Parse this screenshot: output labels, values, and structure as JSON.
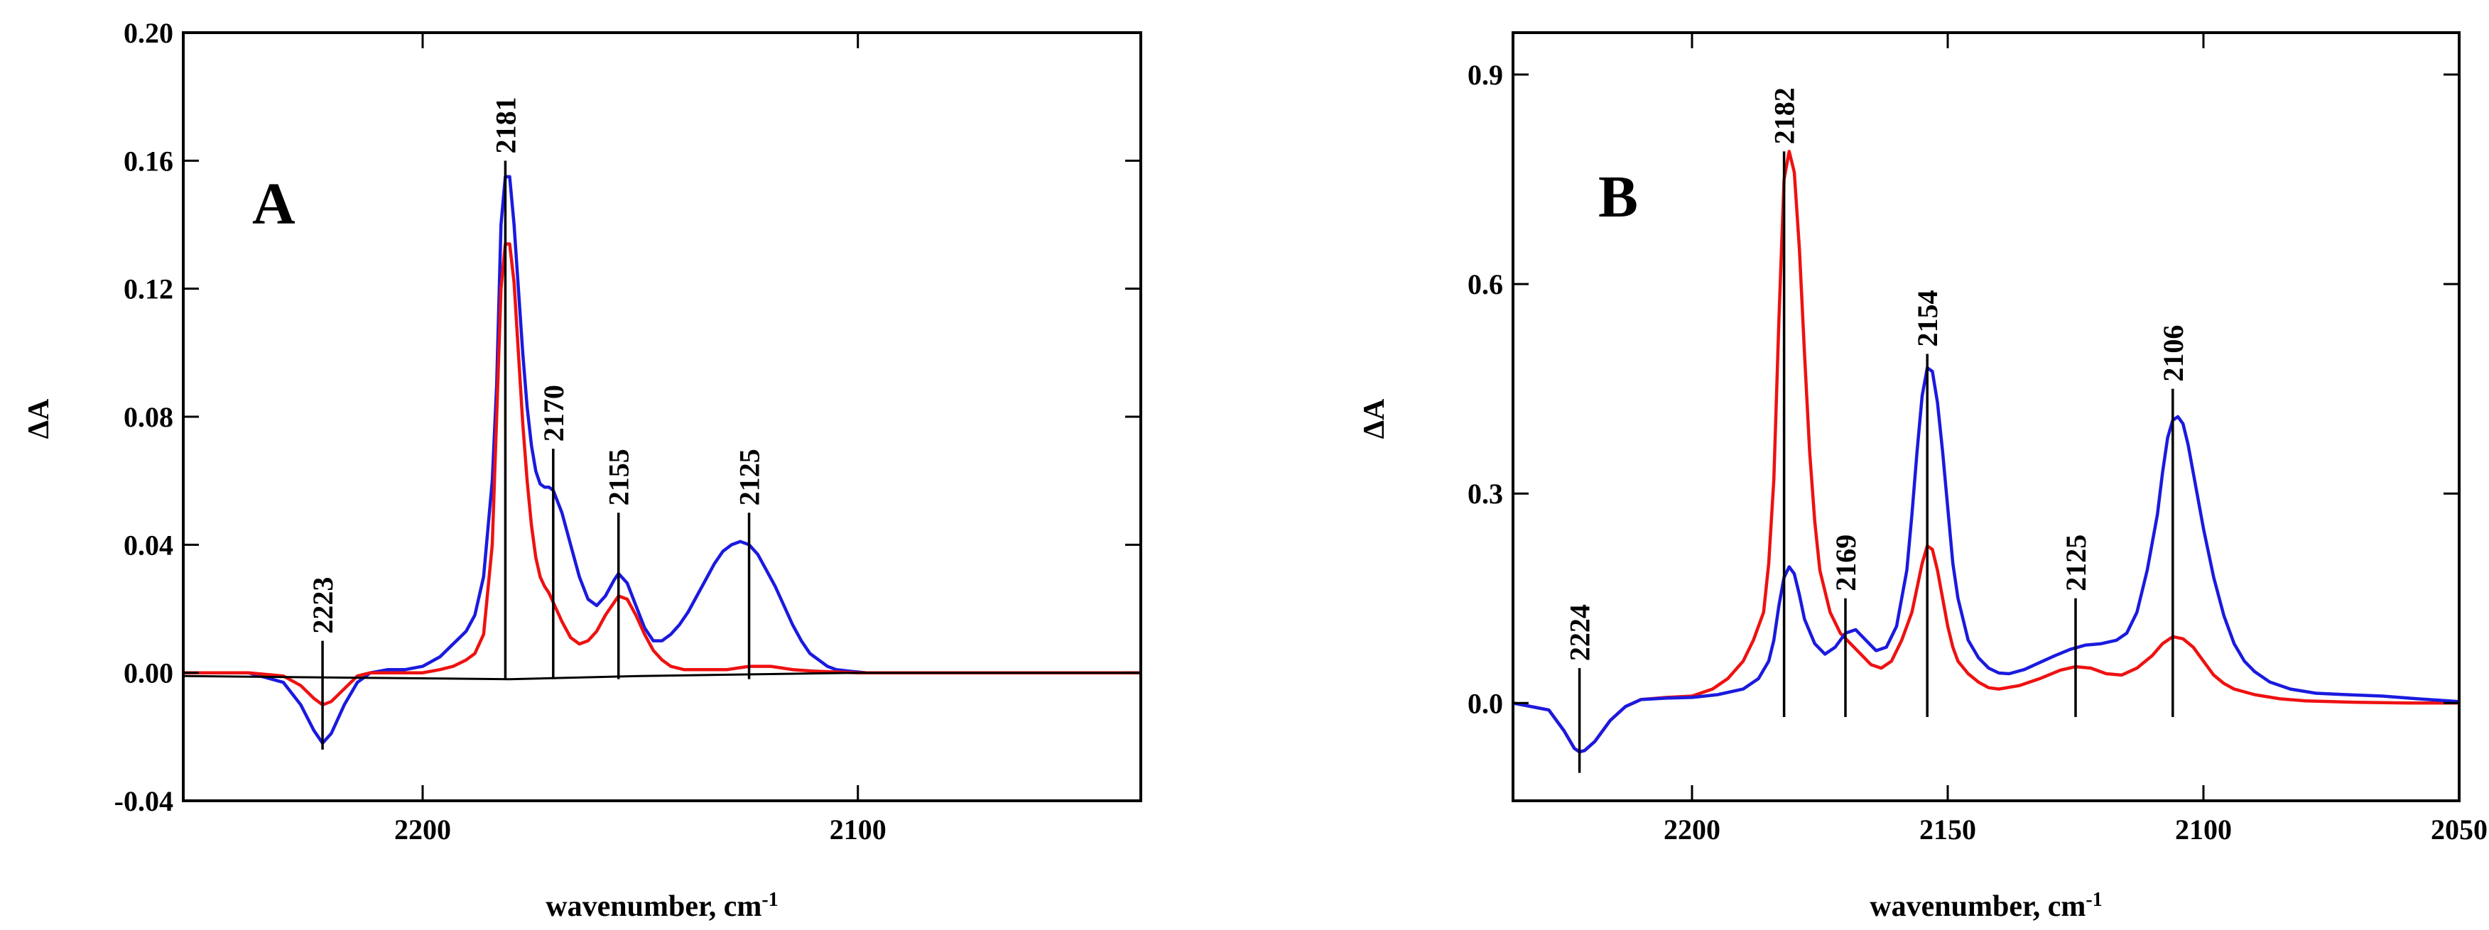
{
  "chart_data": [
    {
      "type": "line",
      "panel": "A",
      "xlabel": "wavenumber, cm",
      "xlabel_sup": "-1",
      "ylabel": "ΔA",
      "xlim": [
        2255,
        2035
      ],
      "ylim": [
        -0.04,
        0.2
      ],
      "x_ticks": [
        2200,
        2100
      ],
      "x_tick_labels": [
        "2200",
        "2100"
      ],
      "y_ticks": [
        -0.04,
        0,
        0.04,
        0.08,
        0.12,
        0.16,
        0.2
      ],
      "y_tick_labels": [
        "-0.04",
        "0.00",
        "0.04",
        "0.08",
        "0.12",
        "0.16",
        "0.20"
      ],
      "peak_labels": [
        {
          "x": 2223,
          "label": "2223",
          "y_top": 0.01,
          "y_bottom": -0.024
        },
        {
          "x": 2181,
          "label": "2181",
          "y_top": 0.16,
          "y_bottom": -0.002
        },
        {
          "x": 2170,
          "label": "2170",
          "y_top": 0.07,
          "y_bottom": -0.002
        },
        {
          "x": 2155,
          "label": "2155",
          "y_top": 0.05,
          "y_bottom": -0.002
        },
        {
          "x": 2125,
          "label": "2125",
          "y_top": 0.05,
          "y_bottom": -0.002
        }
      ],
      "series": [
        {
          "name": "blue",
          "color": "#1a1adf",
          "x": [
            2255,
            2240,
            2232,
            2228,
            2225,
            2223,
            2221,
            2218,
            2215,
            2212,
            2208,
            2204,
            2200,
            2196,
            2193,
            2190,
            2188,
            2186,
            2184,
            2183,
            2182,
            2181,
            2180,
            2179,
            2178,
            2177,
            2176,
            2175,
            2174,
            2173,
            2172,
            2171,
            2170,
            2168,
            2166,
            2164,
            2162,
            2160,
            2158,
            2156,
            2155,
            2153,
            2151,
            2149,
            2147,
            2145,
            2143,
            2141,
            2139,
            2137,
            2135,
            2133,
            2131,
            2129,
            2127,
            2125,
            2123,
            2121,
            2119,
            2117,
            2115,
            2113,
            2111,
            2109,
            2107,
            2105,
            2102,
            2098,
            2090,
            2080,
            2060,
            2035
          ],
          "y": [
            0,
            0,
            -0.003,
            -0.01,
            -0.018,
            -0.022,
            -0.019,
            -0.01,
            -0.003,
            0,
            0.001,
            0.001,
            0.002,
            0.005,
            0.009,
            0.013,
            0.018,
            0.03,
            0.06,
            0.09,
            0.14,
            0.155,
            0.155,
            0.14,
            0.12,
            0.1,
            0.083,
            0.071,
            0.063,
            0.059,
            0.058,
            0.058,
            0.057,
            0.05,
            0.04,
            0.03,
            0.023,
            0.021,
            0.024,
            0.029,
            0.031,
            0.028,
            0.021,
            0.014,
            0.01,
            0.01,
            0.012,
            0.015,
            0.019,
            0.024,
            0.029,
            0.034,
            0.038,
            0.04,
            0.041,
            0.04,
            0.037,
            0.032,
            0.027,
            0.021,
            0.015,
            0.01,
            0.006,
            0.004,
            0.002,
            0.001,
            0.0005,
            0,
            0,
            0,
            0,
            0
          ]
        },
        {
          "name": "red",
          "color": "#ee1111",
          "x": [
            2255,
            2240,
            2232,
            2228,
            2225,
            2223,
            2221,
            2218,
            2215,
            2212,
            2208,
            2204,
            2200,
            2196,
            2193,
            2190,
            2188,
            2186,
            2184,
            2183,
            2182,
            2181,
            2180,
            2179,
            2178,
            2177,
            2176,
            2175,
            2174,
            2173,
            2172,
            2171,
            2170,
            2168,
            2166,
            2164,
            2162,
            2160,
            2158,
            2156,
            2155,
            2153,
            2151,
            2149,
            2147,
            2145,
            2143,
            2140,
            2135,
            2130,
            2125,
            2120,
            2115,
            2110,
            2100,
            2080,
            2035
          ],
          "y": [
            0,
            0,
            -0.001,
            -0.004,
            -0.008,
            -0.01,
            -0.009,
            -0.005,
            -0.001,
            0,
            0,
            0,
            0,
            0.001,
            0.002,
            0.004,
            0.006,
            0.012,
            0.04,
            0.08,
            0.12,
            0.134,
            0.134,
            0.122,
            0.1,
            0.078,
            0.06,
            0.046,
            0.036,
            0.03,
            0.027,
            0.025,
            0.022,
            0.016,
            0.011,
            0.009,
            0.01,
            0.013,
            0.018,
            0.022,
            0.024,
            0.023,
            0.018,
            0.012,
            0.007,
            0.004,
            0.002,
            0.001,
            0.001,
            0.001,
            0.002,
            0.002,
            0.001,
            0.0005,
            0,
            0,
            0
          ]
        },
        {
          "name": "black",
          "color": "#000000",
          "x": [
            2255,
            2220,
            2180,
            2150,
            2100,
            2035
          ],
          "y": [
            -0.001,
            -0.0015,
            -0.002,
            -0.001,
            0,
            0
          ]
        }
      ]
    },
    {
      "type": "line",
      "panel": "B",
      "xlabel": "wavenumber, cm",
      "xlabel_sup": "-1",
      "ylabel": "ΔA",
      "xlim": [
        2235,
        2050
      ],
      "ylim": [
        -0.14,
        0.96
      ],
      "x_ticks": [
        2200,
        2150,
        2100,
        2050
      ],
      "x_tick_labels": [
        "2200",
        "2150",
        "2100",
        "2050"
      ],
      "y_ticks": [
        0,
        0.3,
        0.6,
        0.9
      ],
      "y_tick_labels": [
        "0.0",
        "0.3",
        "0.6",
        "0.9"
      ],
      "peak_labels": [
        {
          "x": 2222,
          "label": "2224",
          "y_top": 0.05,
          "y_bottom": -0.1
        },
        {
          "x": 2182,
          "label": "2182",
          "y_top": 0.79,
          "y_bottom": -0.02
        },
        {
          "x": 2170,
          "label": "2169",
          "y_top": 0.15,
          "y_bottom": -0.02
        },
        {
          "x": 2154,
          "label": "2154",
          "y_top": 0.5,
          "y_bottom": -0.02
        },
        {
          "x": 2125,
          "label": "2125",
          "y_top": 0.15,
          "y_bottom": -0.02
        },
        {
          "x": 2106,
          "label": "2106",
          "y_top": 0.45,
          "y_bottom": -0.02
        }
      ],
      "series": [
        {
          "name": "red",
          "color": "#ee1111",
          "x": [
            2235,
            2228,
            2225,
            2223,
            2222,
            2221,
            2219,
            2216,
            2213,
            2210,
            2205,
            2200,
            2196,
            2193,
            2190,
            2188,
            2186,
            2185,
            2184,
            2183,
            2182,
            2181,
            2180,
            2179,
            2178,
            2177,
            2176,
            2175,
            2173,
            2171,
            2169,
            2167,
            2165,
            2163,
            2161,
            2159,
            2157,
            2156,
            2155,
            2154,
            2153,
            2152,
            2151,
            2150,
            2149,
            2148,
            2146,
            2144,
            2142,
            2140,
            2136,
            2132,
            2128,
            2125,
            2122,
            2119,
            2116,
            2113,
            2110,
            2108,
            2106,
            2104,
            2102,
            2100,
            2098,
            2096,
            2094,
            2090,
            2085,
            2080,
            2070,
            2060,
            2050
          ],
          "y": [
            0,
            -0.01,
            -0.04,
            -0.065,
            -0.07,
            -0.068,
            -0.055,
            -0.025,
            -0.005,
            0.005,
            0.008,
            0.01,
            0.02,
            0.035,
            0.06,
            0.09,
            0.13,
            0.2,
            0.32,
            0.55,
            0.75,
            0.79,
            0.76,
            0.65,
            0.5,
            0.36,
            0.26,
            0.19,
            0.13,
            0.1,
            0.085,
            0.07,
            0.055,
            0.05,
            0.06,
            0.09,
            0.13,
            0.165,
            0.2,
            0.225,
            0.22,
            0.19,
            0.15,
            0.11,
            0.08,
            0.06,
            0.042,
            0.03,
            0.022,
            0.02,
            0.025,
            0.035,
            0.047,
            0.052,
            0.05,
            0.042,
            0.04,
            0.05,
            0.068,
            0.085,
            0.095,
            0.092,
            0.08,
            0.06,
            0.04,
            0.028,
            0.02,
            0.012,
            0.006,
            0.003,
            0.001,
            0,
            0
          ]
        },
        {
          "name": "blue",
          "color": "#1a1adf",
          "x": [
            2235,
            2228,
            2225,
            2223,
            2222,
            2221,
            2219,
            2216,
            2213,
            2210,
            2205,
            2200,
            2195,
            2190,
            2187,
            2185,
            2184,
            2183,
            2182,
            2181,
            2180,
            2179,
            2178,
            2176,
            2174,
            2172,
            2170,
            2168,
            2166,
            2164,
            2162,
            2160,
            2158,
            2157,
            2156,
            2155,
            2154,
            2153,
            2152,
            2151,
            2150,
            2149,
            2148,
            2146,
            2144,
            2142,
            2140,
            2138,
            2135,
            2132,
            2129,
            2126,
            2123,
            2120,
            2117,
            2115,
            2113,
            2111,
            2109,
            2108,
            2107,
            2106,
            2105,
            2104,
            2103,
            2102,
            2100,
            2098,
            2096,
            2094,
            2092,
            2090,
            2087,
            2083,
            2078,
            2072,
            2065,
            2058,
            2050
          ],
          "y": [
            0,
            -0.01,
            -0.04,
            -0.065,
            -0.07,
            -0.068,
            -0.055,
            -0.025,
            -0.005,
            0.005,
            0.007,
            0.008,
            0.012,
            0.02,
            0.035,
            0.06,
            0.09,
            0.14,
            0.18,
            0.195,
            0.185,
            0.155,
            0.12,
            0.085,
            0.07,
            0.08,
            0.1,
            0.105,
            0.09,
            0.075,
            0.08,
            0.11,
            0.19,
            0.27,
            0.36,
            0.44,
            0.48,
            0.475,
            0.43,
            0.36,
            0.28,
            0.2,
            0.15,
            0.09,
            0.065,
            0.05,
            0.043,
            0.042,
            0.048,
            0.058,
            0.068,
            0.077,
            0.083,
            0.085,
            0.09,
            0.1,
            0.13,
            0.19,
            0.27,
            0.33,
            0.38,
            0.405,
            0.41,
            0.4,
            0.37,
            0.33,
            0.25,
            0.18,
            0.125,
            0.085,
            0.06,
            0.045,
            0.03,
            0.02,
            0.014,
            0.012,
            0.01,
            0.006,
            0.002
          ]
        }
      ]
    }
  ]
}
